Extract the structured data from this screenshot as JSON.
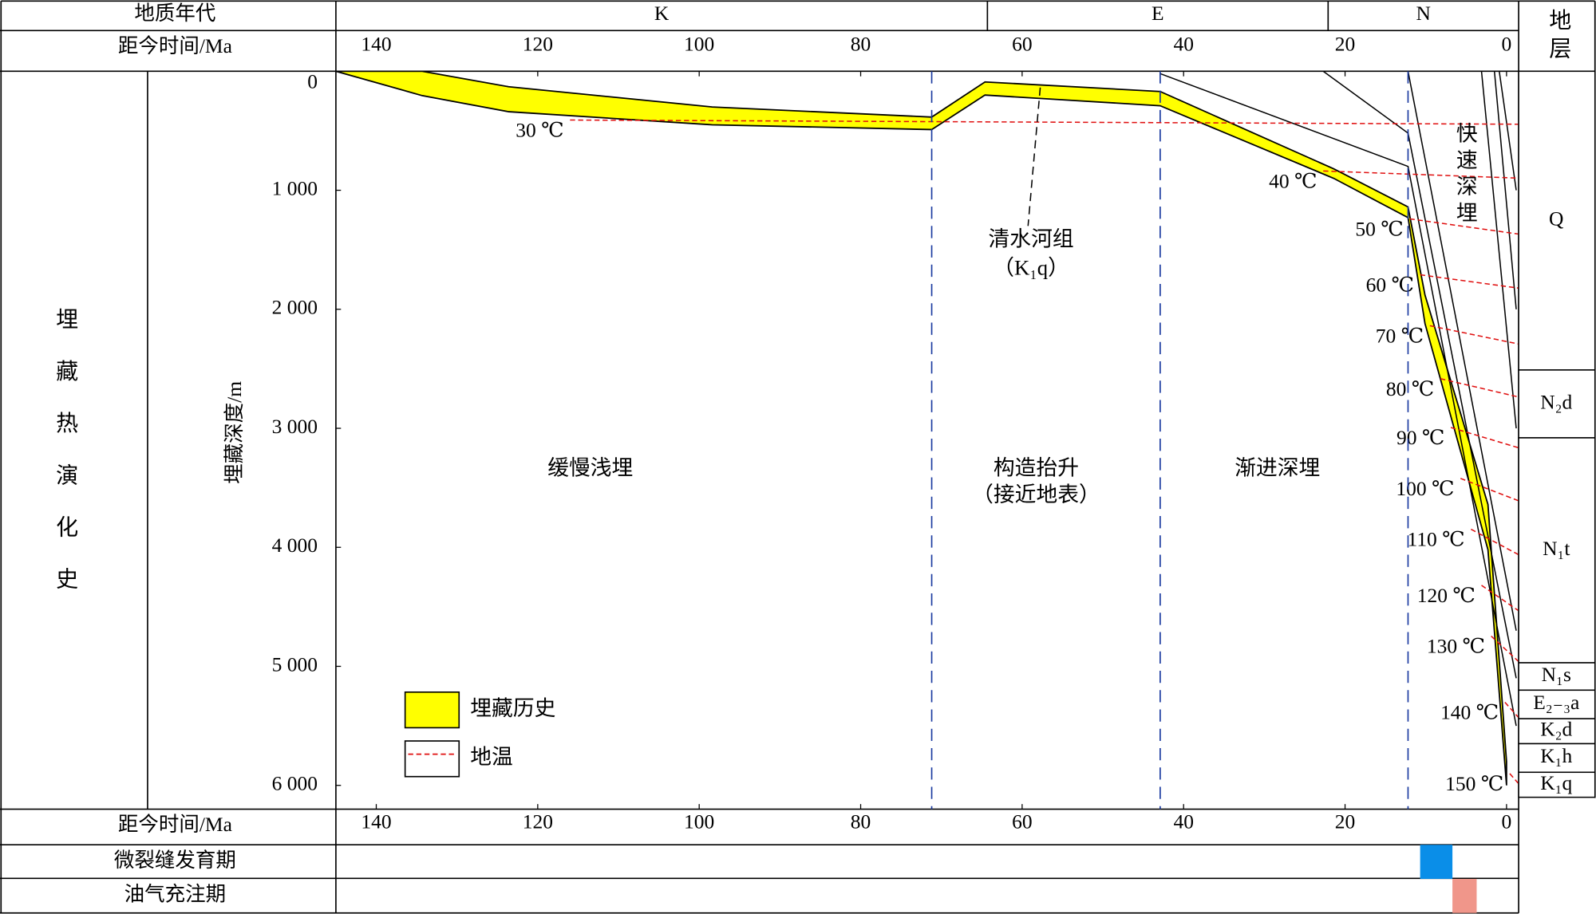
{
  "chart_data": {
    "type": "burial-history",
    "period_header": "地质年代",
    "periods": [
      {
        "label": "K",
        "start": 145,
        "end": 64.3
      },
      {
        "label": "E",
        "start": 64.3,
        "end": 22.1
      },
      {
        "label": "N",
        "start": 22.1,
        "end": -1.5
      }
    ],
    "side_label": "埋藏热演化史",
    "x_label": "距今时间/Ma",
    "y_label": "埋藏深度/m",
    "xlim": [
      145,
      -1.5
    ],
    "xticks": [
      140,
      120,
      100,
      80,
      60,
      40,
      20,
      0
    ],
    "ylim": [
      0,
      6200
    ],
    "yticks": [
      0,
      {
        "value": 1000,
        "label": "1 000"
      },
      {
        "value": 2000,
        "label": "2 000"
      },
      {
        "value": 3000,
        "label": "3 000"
      },
      {
        "value": 4000,
        "label": "4 000"
      },
      {
        "value": 5000,
        "label": "5 000"
      },
      {
        "value": 6000,
        "label": "6 000"
      }
    ],
    "series": [
      {
        "name": "埋藏历史",
        "color": "#ffff00",
        "x": [
          145,
          134.3,
          123.6,
          98.4,
          71.2,
          64.6,
          42.9,
          21.4,
          12.2,
          10.1,
          2.3,
          0
        ],
        "top": [
          0,
          0,
          130,
          300,
          385,
          90,
          170,
          820,
          1140,
          1880,
          3640,
          5800
        ],
        "base": [
          0,
          205,
          340,
          450,
          490,
          200,
          290,
          900,
          1230,
          2120,
          4020,
          6000
        ]
      }
    ],
    "isotherms": {
      "name": "地温",
      "color": "#e01010",
      "lines": [
        {
          "label": "30 ℃",
          "x": [
            116.0,
            -1.5
          ],
          "y": [
            410,
            445
          ]
        },
        {
          "label": "40 ℃",
          "x": [
            22.7,
            -1.5
          ],
          "y": [
            838,
            898
          ]
        },
        {
          "label": "50 ℃",
          "x": [
            12.0,
            -1.5
          ],
          "y": [
            1240,
            1368
          ]
        },
        {
          "label": "60 ℃",
          "x": [
            10.7,
            -1.5
          ],
          "y": [
            1710,
            1822
          ]
        },
        {
          "label": "70 ℃",
          "x": [
            9.5,
            -1.5
          ],
          "y": [
            2138,
            2292
          ]
        },
        {
          "label": "80 ℃",
          "x": [
            8.2,
            -1.5
          ],
          "y": [
            2583,
            2737
          ]
        },
        {
          "label": "90 ℃",
          "x": [
            6.9,
            -1.5
          ],
          "y": [
            2993,
            3164
          ]
        },
        {
          "label": "100 ℃",
          "x": [
            5.7,
            -1.5
          ],
          "y": [
            3421,
            3609
          ]
        },
        {
          "label": "110 ℃",
          "x": [
            4.4,
            -1.5
          ],
          "y": [
            3848,
            4062
          ]
        },
        {
          "label": "120 ℃",
          "x": [
            3.1,
            -1.5
          ],
          "y": [
            4319,
            4533
          ]
        },
        {
          "label": "130 ℃",
          "x": [
            1.9,
            -1.5
          ],
          "y": [
            4746,
            4960
          ]
        },
        {
          "label": "140 ℃",
          "x": [
            0.2,
            -1.5
          ],
          "y": [
            5302,
            5431
          ]
        },
        {
          "label": "150 ℃",
          "x": [
            -0.4,
            -1.5
          ],
          "y": [
            5901,
            5986
          ]
        }
      ]
    },
    "formation_lines": [
      {
        "x": [
          42.9,
          12.2,
          -1.2
        ],
        "y": [
          20,
          800,
          5500
        ]
      },
      {
        "x": [
          22.7,
          12.2,
          -1.2
        ],
        "y": [
          0,
          520,
          5100
        ]
      },
      {
        "x": [
          12.2,
          8.2,
          -1.2
        ],
        "y": [
          0,
          1400,
          4700
        ]
      },
      {
        "x": [
          3.1,
          -1.2
        ],
        "y": [
          0,
          3000
        ]
      },
      {
        "x": [
          1.5,
          -1.2
        ],
        "y": [
          0,
          2000
        ]
      },
      {
        "x": [
          0.9,
          -1.2
        ],
        "y": [
          0,
          1000
        ]
      }
    ],
    "stage_boundaries": [
      71.2,
      42.9,
      12.2
    ],
    "stages": [
      {
        "label": "缓慢浅埋"
      },
      {
        "label": "构造抬升",
        "sublabel": "（接近地表）"
      },
      {
        "label": "渐进深埋"
      },
      {
        "label": "快速深埋"
      }
    ],
    "annotation": {
      "label": "清水河组",
      "sublabel": "（K₁q）"
    },
    "strata_header": "地层",
    "strata": [
      {
        "label": "Q",
        "top": 0,
        "base": 2510
      },
      {
        "label": "N₂d",
        "top": 2510,
        "base": 3080
      },
      {
        "label": "N₁t",
        "top": 3080,
        "base": 4970
      },
      {
        "label": "N₁s",
        "top": 4970,
        "base": 5200
      },
      {
        "label": "E₂₋₃a",
        "top": 5200,
        "base": 5440
      },
      {
        "label": "K₂d",
        "top": 5440,
        "base": 5650
      },
      {
        "label": "K₁h",
        "top": 5650,
        "base": 5890
      },
      {
        "label": "K₁q",
        "top": 5890,
        "base": 6100
      }
    ],
    "events": [
      {
        "label": "微裂缝发育期",
        "start": 10.7,
        "end": 6.7,
        "color": "#0a8ee8"
      },
      {
        "label": "油气充注期",
        "start": 6.7,
        "end": 3.7,
        "color": "#f0968a"
      }
    ]
  }
}
